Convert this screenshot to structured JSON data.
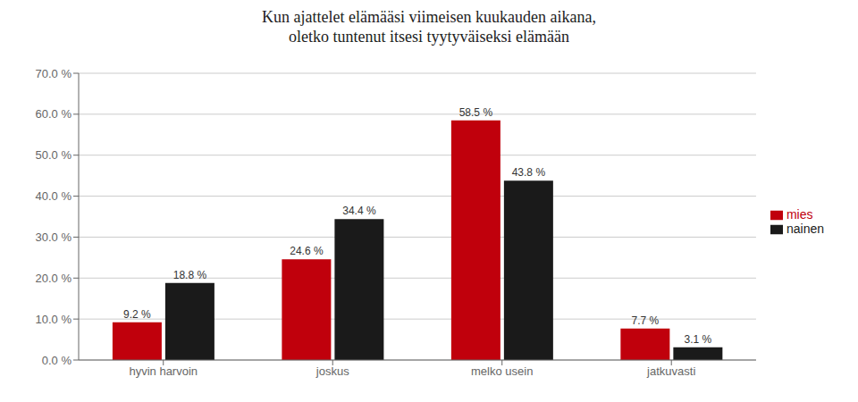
{
  "chart_data": {
    "type": "bar",
    "title": "Kun ajattelet elämääsi viimeisen kuukauden aikana,\noletko tuntenut itsesi tyytyväiseksi elämään",
    "categories": [
      "hyvin harvoin",
      "joskus",
      "melko usein",
      "jatkuvasti"
    ],
    "series": [
      {
        "name": "mies",
        "color": "#C0000C",
        "values": [
          9.2,
          24.6,
          58.5,
          7.7
        ],
        "value_labels": [
          "9.2 %",
          "24.6 %",
          "58.5 %",
          "7.7 %"
        ]
      },
      {
        "name": "nainen",
        "color": "#1A1A1A",
        "values": [
          18.8,
          34.4,
          43.8,
          3.1
        ],
        "value_labels": [
          "18.8 %",
          "34.4 %",
          "43.8 %",
          "3.1 %"
        ]
      }
    ],
    "ylim": [
      0,
      70
    ],
    "yticks": [
      {
        "value": 0,
        "label": "0.0 %"
      },
      {
        "value": 10,
        "label": "10.0 %"
      },
      {
        "value": 20,
        "label": "20.0 %"
      },
      {
        "value": 30,
        "label": "30.0 %"
      },
      {
        "value": 40,
        "label": "40.0 %"
      },
      {
        "value": 50,
        "label": "50.0 %"
      },
      {
        "value": 60,
        "label": "60.0 %"
      },
      {
        "value": 70,
        "label": "70.0 %"
      }
    ],
    "grid": true,
    "legend": "right",
    "data_labels": true
  }
}
